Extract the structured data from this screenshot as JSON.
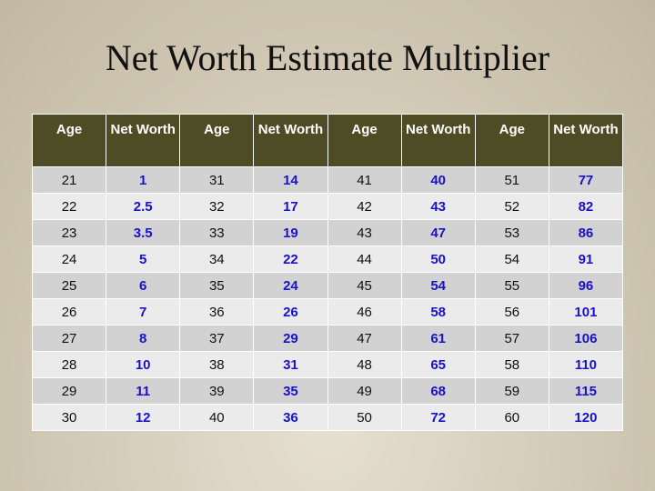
{
  "title": "Net Worth Estimate Multiplier",
  "headers": [
    "Age",
    "Net Worth",
    "Age",
    "Net Worth",
    "Age",
    "Net Worth",
    "Age",
    "Net Worth"
  ],
  "rows": [
    [
      "21",
      "1",
      "31",
      "14",
      "41",
      "40",
      "51",
      "77"
    ],
    [
      "22",
      "2.5",
      "32",
      "17",
      "42",
      "43",
      "52",
      "82"
    ],
    [
      "23",
      "3.5",
      "33",
      "19",
      "43",
      "47",
      "53",
      "86"
    ],
    [
      "24",
      "5",
      "34",
      "22",
      "44",
      "50",
      "54",
      "91"
    ],
    [
      "25",
      "6",
      "35",
      "24",
      "45",
      "54",
      "55",
      "96"
    ],
    [
      "26",
      "7",
      "36",
      "26",
      "46",
      "58",
      "56",
      "101"
    ],
    [
      "27",
      "8",
      "37",
      "29",
      "47",
      "61",
      "57",
      "106"
    ],
    [
      "28",
      "10",
      "38",
      "31",
      "48",
      "65",
      "58",
      "110"
    ],
    [
      "29",
      "11",
      "39",
      "35",
      "49",
      "68",
      "59",
      "115"
    ],
    [
      "30",
      "12",
      "40",
      "36",
      "50",
      "72",
      "60",
      "120"
    ]
  ],
  "colors": {
    "header_bg": "#4d4c24",
    "net_worth_text": "#1a12c8",
    "row_dark": "#d2d2d2",
    "row_light": "#ebebeb"
  }
}
